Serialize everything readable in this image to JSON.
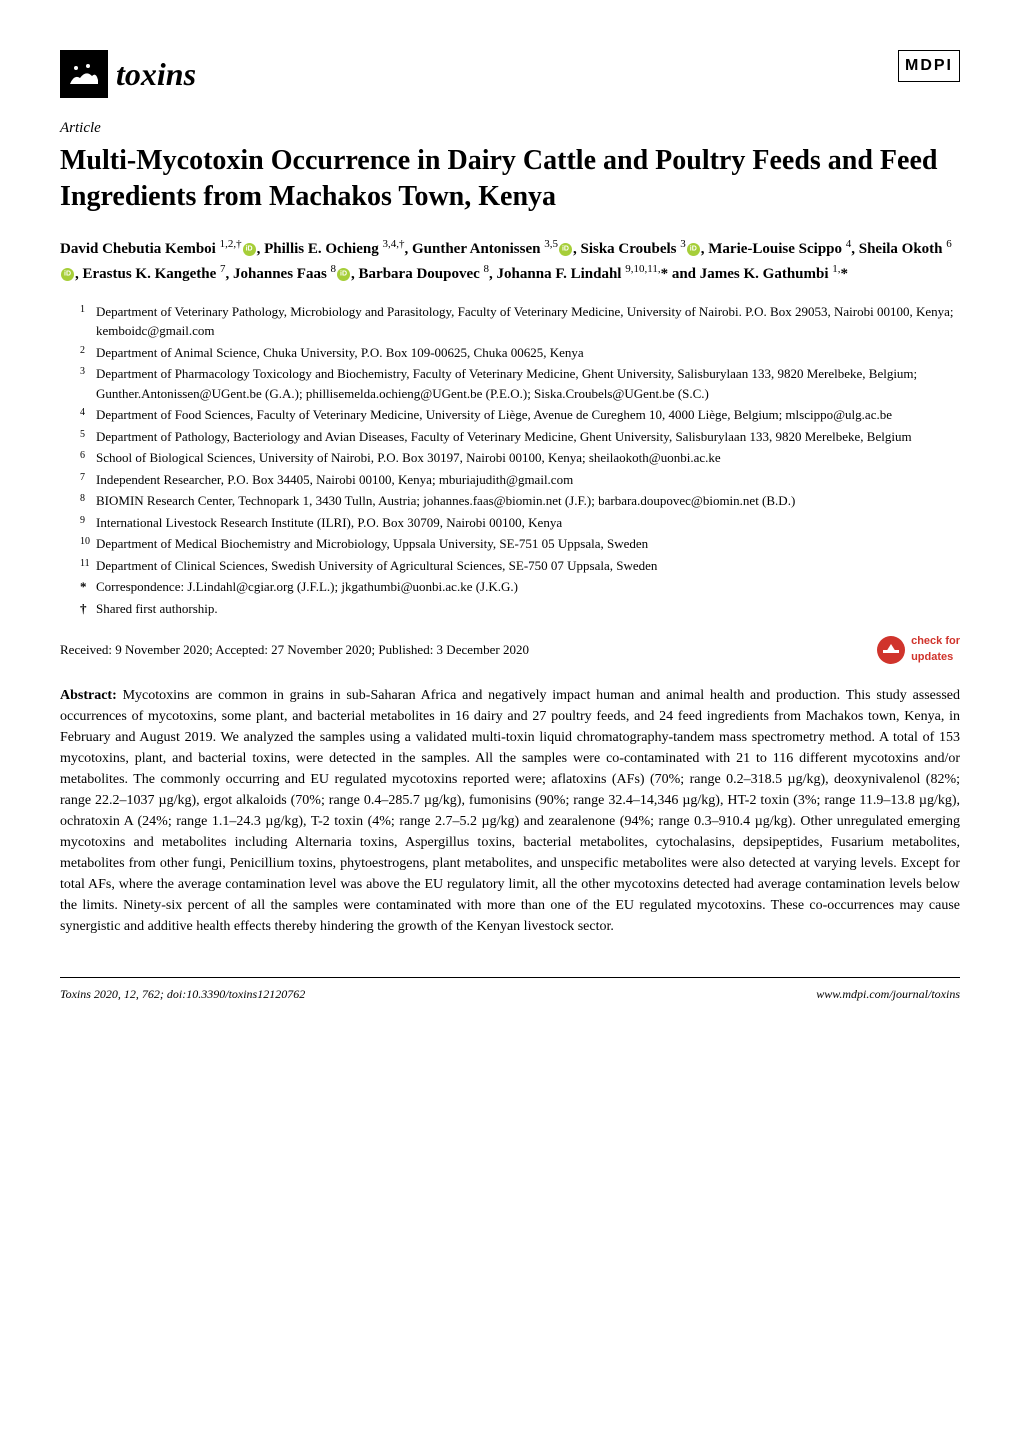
{
  "journal": {
    "name": "toxins",
    "publisher": "MDPI"
  },
  "article_type": "Article",
  "title": "Multi-Mycotoxin Occurrence in Dairy Cattle and Poultry Feeds and Feed Ingredients from Machakos Town, Kenya",
  "authors_html": "David Chebutia Kemboi <span class='sup'>1,2,†</span><span class='orcid'></span>, Phillis E. Ochieng <span class='sup'>3,4,†</span>, Gunther Antonissen <span class='sup'>3,5</span><span class='orcid'></span>, Siska Croubels <span class='sup'>3</span><span class='orcid'></span>, Marie-Louise Scippo <span class='sup'>4</span>, Sheila Okoth <span class='sup'>6</span><span class='orcid'></span>, Erastus K. Kangethe <span class='sup'>7</span>, Johannes Faas <span class='sup'>8</span><span class='orcid'></span>, Barbara Doupovec <span class='sup'>8</span>, Johanna F. Lindahl <span class='sup'>9,10,11,</span>* and James K. Gathumbi <span class='sup'>1,</span>*",
  "affiliations": [
    {
      "num": "1",
      "text": "Department of Veterinary Pathology, Microbiology and Parasitology, Faculty of Veterinary Medicine, University of Nairobi. P.O. Box 29053, Nairobi 00100, Kenya; kemboidc@gmail.com"
    },
    {
      "num": "2",
      "text": "Department of Animal Science, Chuka University, P.O. Box 109-00625, Chuka 00625, Kenya"
    },
    {
      "num": "3",
      "text": "Department of Pharmacology Toxicology and Biochemistry, Faculty of Veterinary Medicine, Ghent University, Salisburylaan 133, 9820 Merelbeke, Belgium; Gunther.Antonissen@UGent.be (G.A.); phillisemelda.ochieng@UGent.be (P.E.O.); Siska.Croubels@UGent.be (S.C.)"
    },
    {
      "num": "4",
      "text": "Department of Food Sciences, Faculty of Veterinary Medicine, University of Liège, Avenue de Cureghem 10, 4000 Liège, Belgium; mlscippo@ulg.ac.be"
    },
    {
      "num": "5",
      "text": "Department of Pathology, Bacteriology and Avian Diseases, Faculty of Veterinary Medicine, Ghent University, Salisburylaan 133, 9820 Merelbeke, Belgium"
    },
    {
      "num": "6",
      "text": "School of Biological Sciences, University of Nairobi, P.O. Box 30197, Nairobi 00100, Kenya; sheilaokoth@uonbi.ac.ke"
    },
    {
      "num": "7",
      "text": "Independent Researcher, P.O. Box 34405, Nairobi 00100, Kenya; mburiajudith@gmail.com"
    },
    {
      "num": "8",
      "text": "BIOMIN Research Center, Technopark 1, 3430 Tulln, Austria; johannes.faas@biomin.net (J.F.); barbara.doupovec@biomin.net (B.D.)"
    },
    {
      "num": "9",
      "text": "International Livestock Research Institute (ILRI), P.O. Box 30709, Nairobi 00100, Kenya"
    },
    {
      "num": "10",
      "text": "Department of Medical Biochemistry and Microbiology, Uppsala University, SE-751 05 Uppsala, Sweden"
    },
    {
      "num": "11",
      "text": "Department of Clinical Sciences, Swedish University of Agricultural Sciences, SE-750 07 Uppsala, Sweden"
    }
  ],
  "correspondence": {
    "mark": "*",
    "text": "Correspondence: J.Lindahl@cgiar.org (J.F.L.); jkgathumbi@uonbi.ac.ke (J.K.G.)"
  },
  "shared": {
    "mark": "†",
    "text": "Shared first authorship."
  },
  "received": "Received: 9 November 2020; Accepted: 27 November 2020; Published: 3 December 2020",
  "check_updates_label_1": "check for",
  "check_updates_label_2": "updates",
  "abstract_label": "Abstract:",
  "abstract": "Mycotoxins are common in grains in sub-Saharan Africa and negatively impact human and animal health and production. This study assessed occurrences of mycotoxins, some plant, and bacterial metabolites in 16 dairy and 27 poultry feeds, and 24 feed ingredients from Machakos town, Kenya, in February and August 2019. We analyzed the samples using a validated multi-toxin liquid chromatography-tandem mass spectrometry method. A total of 153 mycotoxins, plant, and bacterial toxins, were detected in the samples. All the samples were co-contaminated with 21 to 116 different mycotoxins and/or metabolites. The commonly occurring and EU regulated mycotoxins reported were; aflatoxins (AFs) (70%; range 0.2–318.5 µg/kg), deoxynivalenol (82%; range 22.2–1037 µg/kg), ergot alkaloids (70%; range 0.4–285.7 µg/kg), fumonisins (90%; range 32.4–14,346 µg/kg), HT-2 toxin (3%; range 11.9–13.8 µg/kg), ochratoxin A (24%; range 1.1–24.3 µg/kg), T-2 toxin (4%; range 2.7–5.2 µg/kg) and zearalenone (94%; range 0.3–910.4 µg/kg). Other unregulated emerging mycotoxins and metabolites including Alternaria toxins, Aspergillus toxins, bacterial metabolites, cytochalasins, depsipeptides, Fusarium metabolites, metabolites from other fungi, Penicillium toxins, phytoestrogens, plant metabolites, and unspecific metabolites were also detected at varying levels. Except for total AFs, where the average contamination level was above the EU regulatory limit, all the other mycotoxins detected had average contamination levels below the limits. Ninety-six percent of all the samples were contaminated with more than one of the EU regulated mycotoxins. These co-occurrences may cause synergistic and additive health effects thereby hindering the growth of the Kenyan livestock sector.",
  "footer": {
    "left": "Toxins 2020, 12, 762; doi:10.3390/toxins12120762",
    "right": "www.mdpi.com/journal/toxins"
  }
}
